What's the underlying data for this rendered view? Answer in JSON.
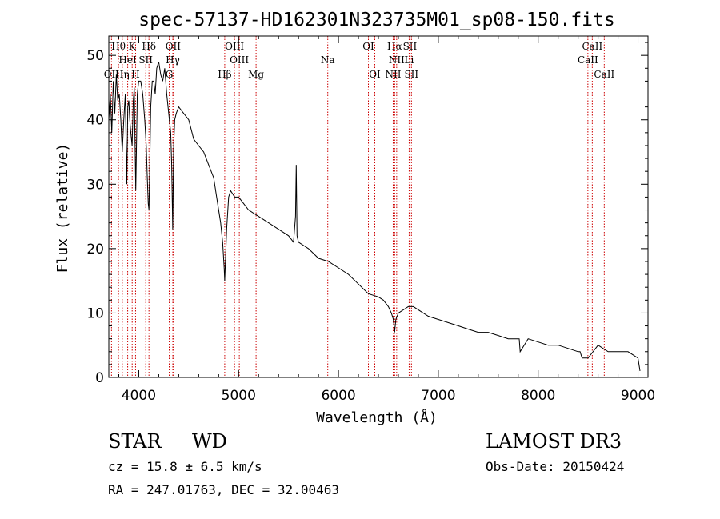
{
  "chart_data": {
    "type": "line",
    "title": "spec-57137-HD162301N323735M01_sp08-150.fits",
    "xlabel": "Wavelength (Å)",
    "ylabel": "Flux (relative)",
    "xlim": [
      3700,
      9100
    ],
    "ylim": [
      0,
      53
    ],
    "x_ticks": [
      4000,
      5000,
      6000,
      7000,
      8000,
      9000
    ],
    "y_ticks": [
      0,
      10,
      20,
      30,
      40,
      50
    ],
    "grid": false,
    "series": [
      {
        "name": "spectrum",
        "color": "#000000",
        "x": [
          3700,
          3715,
          3730,
          3745,
          3760,
          3775,
          3790,
          3805,
          3820,
          3835,
          3850,
          3865,
          3880,
          3890,
          3900,
          3910,
          3920,
          3933,
          3945,
          3955,
          3970,
          3985,
          4000,
          4020,
          4040,
          4060,
          4075,
          4085,
          4095,
          4102,
          4110,
          4120,
          4135,
          4150,
          4165,
          4180,
          4200,
          4220,
          4240,
          4260,
          4280,
          4300,
          4320,
          4330,
          4340,
          4350,
          4360,
          4375,
          4400,
          4450,
          4500,
          4550,
          4600,
          4650,
          4700,
          4750,
          4780,
          4800,
          4820,
          4840,
          4855,
          4861,
          4868,
          4880,
          4900,
          4920,
          4940,
          4960,
          5000,
          5100,
          5200,
          5300,
          5400,
          5500,
          5550,
          5570,
          5577,
          5585,
          5600,
          5700,
          5800,
          5900,
          6000,
          6100,
          6200,
          6300,
          6400,
          6450,
          6500,
          6530,
          6550,
          6563,
          6575,
          6600,
          6650,
          6700,
          6750,
          6800,
          6900,
          7000,
          7100,
          7200,
          7300,
          7400,
          7500,
          7600,
          7700,
          7800,
          7810,
          7820,
          7900,
          8000,
          8100,
          8200,
          8300,
          8400,
          8420,
          8440,
          8500,
          8600,
          8700,
          8800,
          8900,
          8950,
          9000,
          9020
        ],
        "y": [
          40,
          44,
          38,
          46,
          41,
          47,
          43,
          44,
          40,
          35,
          40,
          44,
          30,
          42,
          43,
          40,
          38,
          36,
          43,
          45,
          29,
          44,
          46,
          46,
          44,
          40,
          36,
          31,
          27,
          26,
          33,
          42,
          46,
          46,
          44,
          48,
          49,
          47,
          46,
          48,
          44,
          41,
          38,
          33,
          23,
          36,
          40,
          41,
          42,
          41,
          40,
          37,
          36,
          35,
          33,
          31,
          28,
          26,
          24,
          21,
          17,
          15,
          18,
          23,
          28,
          29,
          28.5,
          28,
          28,
          26,
          25,
          24,
          23,
          22,
          21,
          25,
          33,
          22,
          21,
          20,
          18.5,
          18,
          17,
          16,
          14.5,
          13,
          12.5,
          12,
          11,
          10,
          9,
          7,
          9,
          10,
          10.5,
          11,
          11,
          10.5,
          9.5,
          9,
          8.5,
          8,
          7.5,
          7,
          7,
          6.5,
          6,
          6,
          6,
          4,
          6,
          5.5,
          5,
          5,
          4.5,
          4,
          4,
          3,
          3,
          5,
          4,
          4,
          4,
          3.5,
          3,
          1
        ]
      }
    ],
    "lines": [
      {
        "label": "Hθ",
        "x": 3797,
        "row": 1
      },
      {
        "label": "K",
        "x": 3934,
        "row": 1
      },
      {
        "label": "Hδ",
        "x": 4102,
        "row": 1
      },
      {
        "label": "OII",
        "x": 4344,
        "row": 1
      },
      {
        "label": "OIII",
        "x": 4959,
        "row": 1
      },
      {
        "label": "OI",
        "x": 6300,
        "row": 1
      },
      {
        "label": "Hα",
        "x": 6563,
        "row": 1
      },
      {
        "label": "SII",
        "x": 6716,
        "row": 1
      },
      {
        "label": "CaII",
        "x": 8542,
        "row": 1
      },
      {
        "label": "HeI",
        "x": 3889,
        "row": 2
      },
      {
        "label": "SII",
        "x": 4070,
        "row": 2
      },
      {
        "label": "Hγ",
        "x": 4341,
        "row": 2
      },
      {
        "label": "OIII",
        "x": 5007,
        "row": 2
      },
      {
        "label": "Na",
        "x": 5893,
        "row": 2
      },
      {
        "label": "NII",
        "x": 6583,
        "row": 2
      },
      {
        "label": "Li",
        "x": 6708,
        "row": 2
      },
      {
        "label": "CaII",
        "x": 8498,
        "row": 2
      },
      {
        "label": "OII",
        "x": 3727,
        "row": 3
      },
      {
        "label": "Hη",
        "x": 3835,
        "row": 3
      },
      {
        "label": "H",
        "x": 3968,
        "row": 3
      },
      {
        "label": "G",
        "x": 4305,
        "row": 3
      },
      {
        "label": "Hβ",
        "x": 4861,
        "row": 3
      },
      {
        "label": "Mg",
        "x": 5175,
        "row": 3
      },
      {
        "label": "OI",
        "x": 6364,
        "row": 3
      },
      {
        "label": "NII",
        "x": 6548,
        "row": 3
      },
      {
        "label": "SII",
        "x": 6731,
        "row": 3
      },
      {
        "label": "CaII",
        "x": 8662,
        "row": 3
      }
    ],
    "line_color": "#cc0000"
  },
  "info": {
    "object_class": "STAR",
    "subclass": "WD",
    "survey": "LAMOST DR3",
    "redshift": "cz = 15.8 ± 6.5 km/s",
    "obs_date": "Obs-Date: 20150424",
    "coords": "RA = 247.01763, DEC =  32.00463"
  }
}
